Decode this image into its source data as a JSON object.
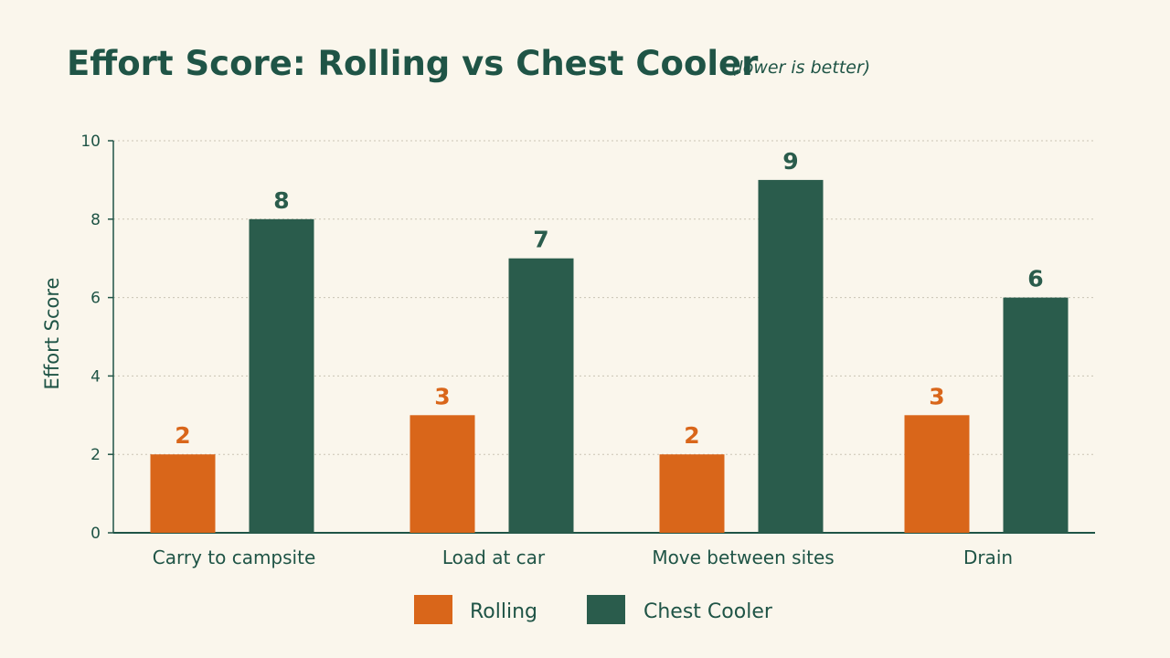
{
  "chart_data": {
    "type": "bar",
    "title": "Effort Score: Rolling vs Chest Cooler",
    "subtitle": "(lower is better)",
    "xlabel": "",
    "ylabel": "Effort Score",
    "ylim": [
      0,
      10
    ],
    "yticks": [
      0,
      2,
      4,
      6,
      8,
      10
    ],
    "grid": true,
    "legend_position": "bottom-center",
    "categories": [
      "Carry to campsite",
      "Load at car",
      "Move between sites",
      "Drain"
    ],
    "series": [
      {
        "name": "Rolling",
        "color": "#d9661a",
        "values": [
          2,
          3,
          2,
          3
        ]
      },
      {
        "name": "Chest Cooler",
        "color": "#2a5c4c",
        "values": [
          8,
          7,
          9,
          6
        ]
      }
    ],
    "text_color": "#1f5446",
    "axis_color": "#1f5446",
    "grid_color": "#c9c4b4",
    "background": "#faf6ec"
  }
}
